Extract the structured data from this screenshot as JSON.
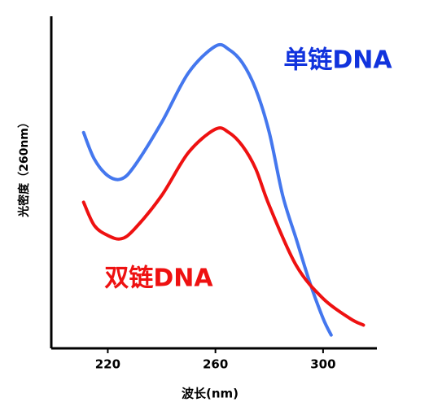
{
  "chart_data": {
    "type": "line",
    "x_label": "波长(nm)",
    "y_label": "光密度（260nm）",
    "xlim": [
      199,
      320
    ],
    "ylim": [
      0,
      100
    ],
    "xticks": [
      220,
      260,
      300
    ],
    "series": [
      {
        "name": "单链DNA",
        "color": "#4477ee",
        "x": [
          211,
          215,
          220,
          225,
          230,
          240,
          250,
          260,
          265,
          270,
          275,
          280,
          285,
          290,
          295,
          300,
          303
        ],
        "values": [
          65,
          57,
          52,
          51,
          55,
          68,
          83,
          91,
          90,
          86,
          78,
          65,
          46,
          33,
          20,
          9,
          4
        ]
      },
      {
        "name": "双链DNA",
        "color": "#ee1111",
        "x": [
          211,
          215,
          220,
          225,
          230,
          240,
          250,
          260,
          265,
          270,
          275,
          280,
          290,
          300,
          310,
          315
        ],
        "values": [
          44,
          37,
          34,
          33,
          36,
          46,
          59,
          66,
          65,
          61,
          54,
          43,
          25,
          15,
          9,
          7
        ]
      }
    ]
  }
}
